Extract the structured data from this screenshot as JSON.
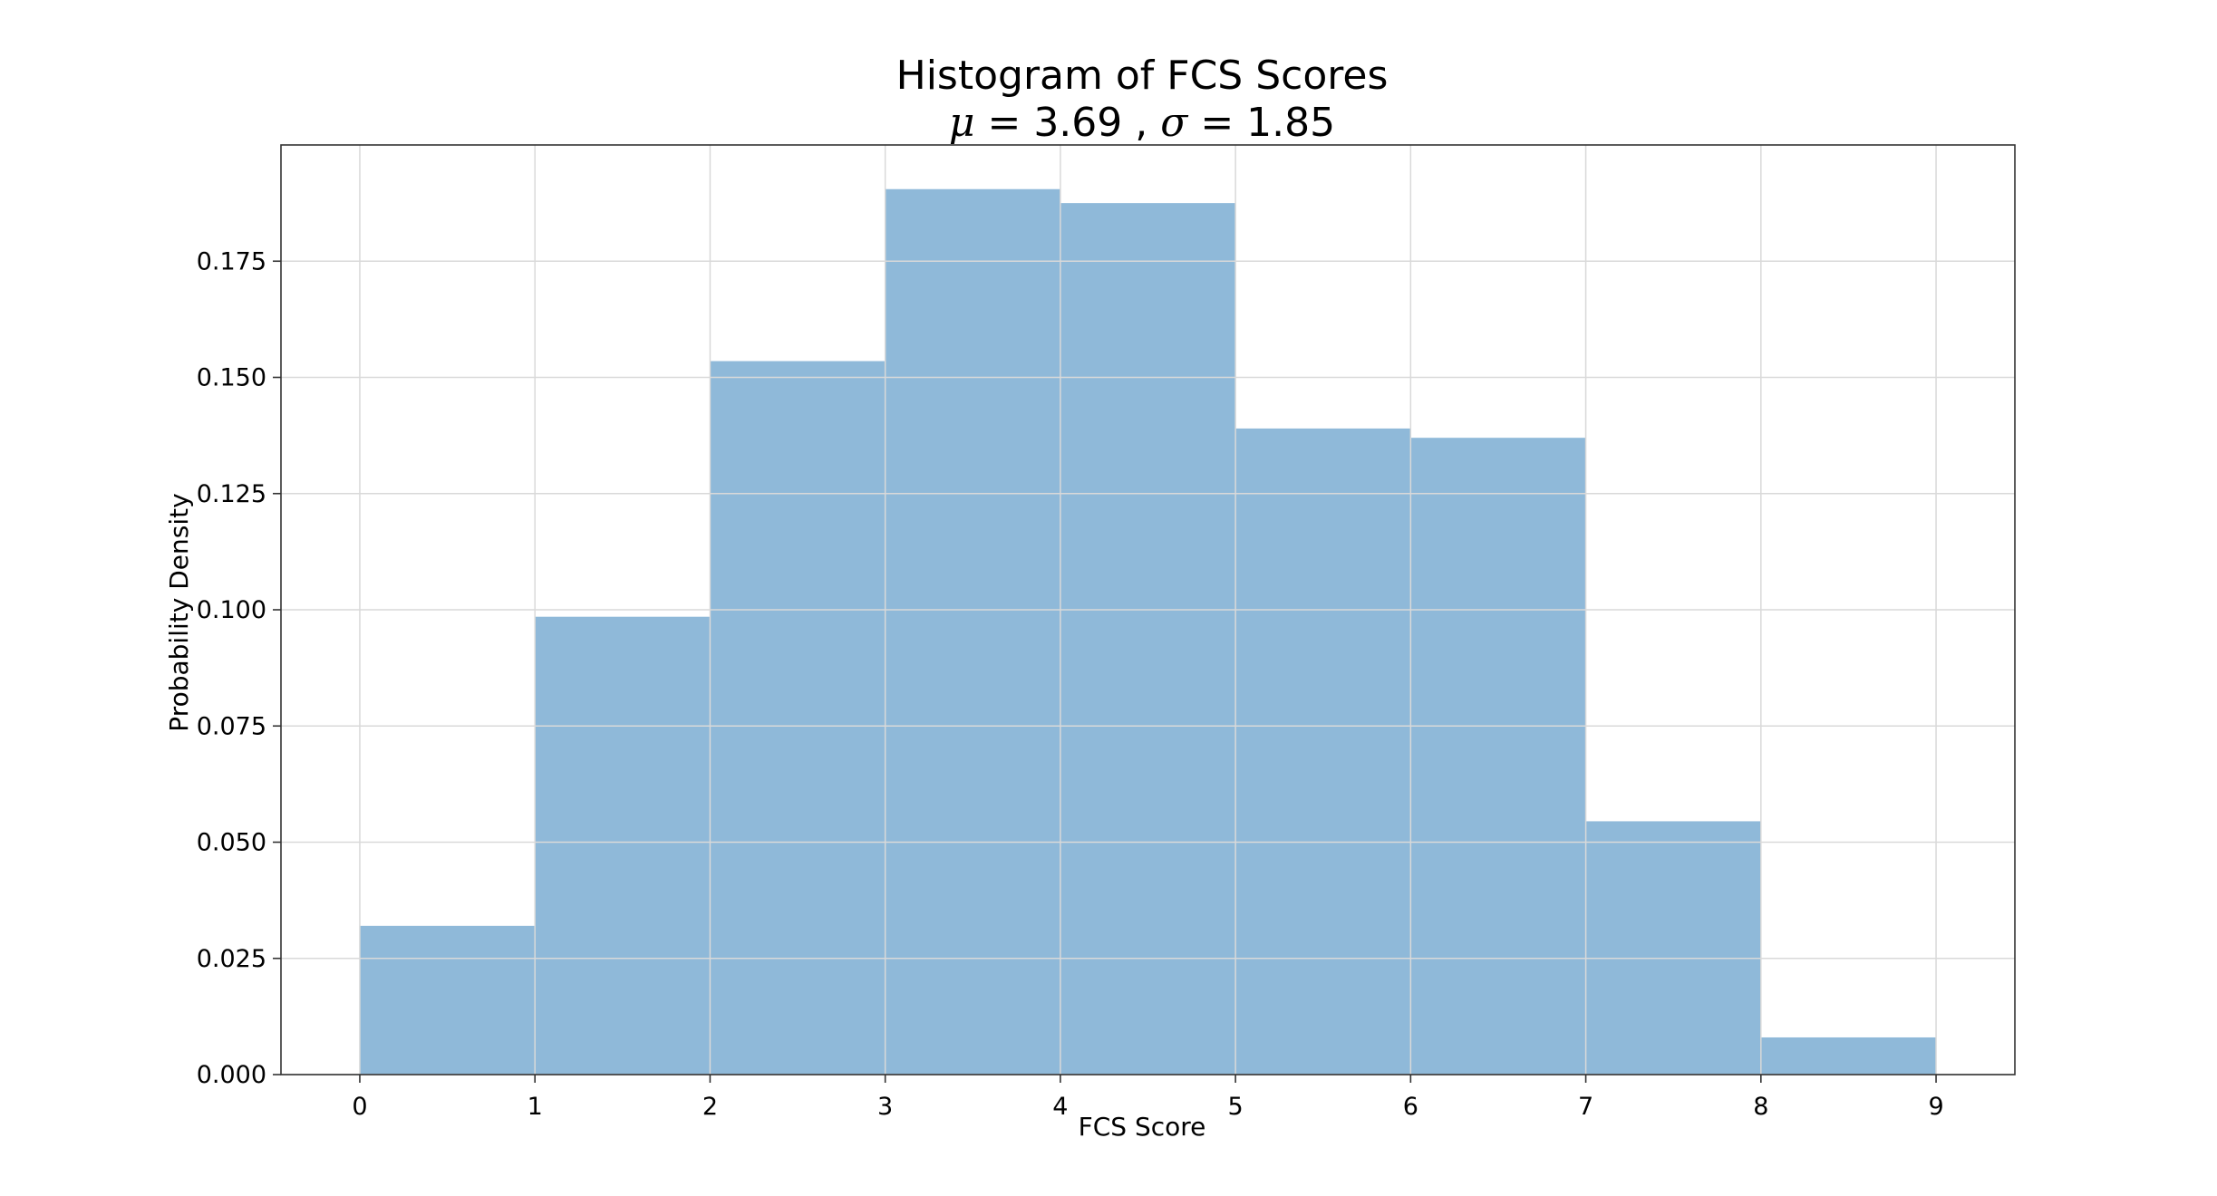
{
  "chart_data": {
    "type": "bar",
    "histogram": true,
    "title": "Histogram of FCS Scores",
    "subtitle": {
      "mu_symbol": "μ",
      "mu_value": "3.69",
      "sigma_symbol": "σ",
      "sigma_value": "1.85"
    },
    "xlabel": "FCS Score",
    "ylabel": "Probability Density",
    "bin_edges": [
      0,
      1,
      2,
      3,
      4,
      5,
      6,
      7,
      8,
      9
    ],
    "values": [
      0.032,
      0.0985,
      0.1535,
      0.1905,
      0.1875,
      0.139,
      0.137,
      0.0545,
      0.008
    ],
    "xlim": [
      -0.45,
      9.45
    ],
    "ylim": [
      0,
      0.2
    ],
    "xticks": [
      0,
      1,
      2,
      3,
      4,
      5,
      6,
      7,
      8,
      9
    ],
    "xtick_labels": [
      "0",
      "1",
      "2",
      "3",
      "4",
      "5",
      "6",
      "7",
      "8",
      "9"
    ],
    "yticks": [
      0,
      0.025,
      0.05,
      0.075,
      0.1,
      0.125,
      0.15,
      0.175
    ],
    "ytick_labels": [
      "0.000",
      "0.025",
      "0.050",
      "0.075",
      "0.100",
      "0.125",
      "0.150",
      "0.175"
    ],
    "grid": true,
    "bar_color": "#8fb9d9",
    "grid_color": "#d9d9d9",
    "legend": "none"
  }
}
